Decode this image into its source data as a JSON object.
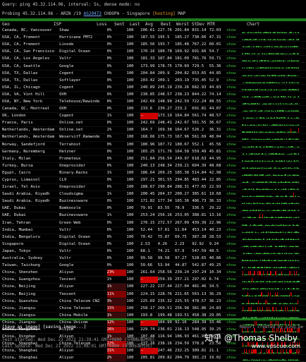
{
  "status_line": "Query: ping 45.32.114.96, interval: 5s, dense mode: no",
  "probe_line": {
    "prefix": "Probing 45.32.114.96 - ARIN /19",
    "asn": "AS20473",
    "org": "CHOOPA - Singapore",
    "host_tag": "[hosting]",
    "map": "MAP"
  },
  "columns": [
    "Geo",
    "ISP",
    "Loss",
    "Sent",
    "Last",
    "Avg",
    "Best",
    "Worst",
    "StDev",
    "MTR",
    "Chart"
  ],
  "rows": [
    {
      "geo": "Canada, BC, Vancouver",
      "isp": "Shaw",
      "loss": "0%",
      "sent": "100",
      "last": "206.61",
      "avg": "227.76",
      "best": "201.84",
      "worst": "831.14",
      "stdev": "72.03",
      "mtr": "show",
      "lvl": "ok"
    },
    {
      "geo": "USA, CA, Fremont",
      "isp": "Hurricane FMT2",
      "loss": "0%",
      "sent": "100",
      "last": "187.55",
      "avg": "195.5",
      "best": "185.27",
      "worst": "738.66",
      "stdev": "47.31",
      "mtr": "show",
      "lvl": "ok"
    },
    {
      "geo": "USA, CA, Fremont",
      "isp": "Linode",
      "loss": "0%",
      "sent": "100",
      "last": "185.56",
      "avg": "193.7",
      "best": "185.48",
      "worst": "767.22",
      "stdev": "60.01",
      "mtr": "show",
      "lvl": "ok"
    },
    {
      "geo": "USA, CA, San Francisco",
      "isp": "Digital Ocean",
      "loss": "0%",
      "sent": "100",
      "last": "170.16",
      "avg": "180.78",
      "best": "169.92",
      "worst": "691.66",
      "stdev": "54.7",
      "mtr": "show",
      "lvl": "ok"
    },
    {
      "geo": "USA, CA, Los Angeles",
      "isp": "Vultr",
      "loss": "0%",
      "sent": "100",
      "last": "181.33",
      "avg": "187.84",
      "best": "181.09",
      "worst": "781.76",
      "stdev": "59.71",
      "mtr": "show",
      "lvl": "ok"
    },
    {
      "geo": "USA, CA, Seattle",
      "isp": "Google",
      "loss": "0%",
      "sent": "100",
      "last": "173.99",
      "avg": "178.75",
      "best": "170.69",
      "worst": "729.5",
      "stdev": "55.36",
      "mtr": "show",
      "lvl": "ok"
    },
    {
      "geo": "USA, TX, Dallas",
      "isp": "Cogent",
      "loss": "0%",
      "sent": "100",
      "last": "204.84",
      "avg": "209.9",
      "best": "204.82",
      "worst": "653.65",
      "stdev": "44.85",
      "mtr": "show",
      "lvl": "ok"
    },
    {
      "geo": "USA, TX, Dallas",
      "isp": "Softlayer",
      "loss": "0%",
      "sent": "100",
      "last": "203.42",
      "avg": "209.1",
      "best": "203.19",
      "worst": "735.45",
      "stdev": "52.9",
      "mtr": "show",
      "lvl": "ok"
    },
    {
      "geo": "USA, IL, Chicago",
      "isp": "Cogent",
      "loss": "0%",
      "sent": "100",
      "last": "240.89",
      "avg": "245.19",
      "best": "239.26",
      "worst": "682.93",
      "stdev": "44.83",
      "mtr": "show",
      "lvl": "ok"
    },
    {
      "geo": "USA, VA, Vint Hill",
      "isp": "OVH",
      "loss": "0%",
      "sent": "100",
      "last": "238.85",
      "avg": "248.57",
      "best": "238.23",
      "worst": "844.22",
      "stdev": "74.14",
      "mtr": "show",
      "lvl": "ok"
    },
    {
      "geo": "USA, NY, New York",
      "isp": "Telehouse/Rawinde",
      "loss": "0%",
      "sent": "100",
      "last": "242.69",
      "avg": "248.99",
      "best": "242.59",
      "worst": "722.24",
      "stdev": "48.55",
      "mtr": "show",
      "lvl": "ok"
    },
    {
      "geo": "Canada, QC, Montreal",
      "isp": "OVH",
      "loss": "0%",
      "sent": "100",
      "last": "233.6",
      "avg": "239.27",
      "best": "233.2",
      "worst": "691.81",
      "stdev": "44.07",
      "mtr": "show",
      "lvl": "ok"
    },
    {
      "geo": "UK, London",
      "isp": "Cogent",
      "loss": "1%",
      "sent": "100",
      "last": "—",
      "avg": "173.19",
      "best": "164.84",
      "worst": "561.74",
      "stdev": "48.57",
      "mtr": "show",
      "lvl": "lastbad"
    },
    {
      "geo": "France, Paris",
      "isp": "Online.net",
      "loss": "0%",
      "sent": "100",
      "last": "242.69",
      "avg": "248.41",
      "best": "242.67",
      "worst": "561.55",
      "stdev": "36.67",
      "mtr": "show",
      "lvl": "ok"
    },
    {
      "geo": "Netherlands, Amsterdam",
      "isp": "Online.net",
      "loss": "2%",
      "sent": "100",
      "last": "164.7",
      "avg": "169.38",
      "best": "164.67",
      "worst": "526.2",
      "stdev": "36.31",
      "mtr": "show",
      "lvl": "ok"
    },
    {
      "geo": "Netherlands, Amsterdam",
      "isp": "WeservitT.Ramwode",
      "loss": "0%",
      "sent": "100",
      "last": "168.66",
      "avg": "175.73",
      "best": "167.96",
      "worst": "561.69",
      "stdev": "48.04",
      "mtr": "show",
      "lvl": "ok"
    },
    {
      "geo": "Norway, Sandefjord",
      "isp": "Terrahost",
      "loss": "0%",
      "sent": "100",
      "last": "180.96",
      "avg": "187.72",
      "best": "180.67",
      "worst": "552.1",
      "stdev": "45.56",
      "mtr": "show",
      "lvl": "ok"
    },
    {
      "geo": "Germany, Nuremberg",
      "isp": "Hetzner",
      "loss": "0%",
      "sent": "100",
      "last": "165.25",
      "avg": "171.76",
      "best": "164.58",
      "worst": "559.49",
      "stdev": "45.81",
      "mtr": "show",
      "lvl": "ok"
    },
    {
      "geo": "Italy, Milan",
      "isp": "Prometeus",
      "loss": "0%",
      "sent": "100",
      "last": "251.84",
      "avg": "256.54",
      "best": "249.97",
      "worst": "618.63",
      "stdev": "44.95",
      "mtr": "show",
      "lvl": "ok"
    },
    {
      "geo": "Turkey, Bursa",
      "isp": "Oneprovider",
      "loss": "0%",
      "sent": "100",
      "last": "240.13",
      "avg": "248.34",
      "best": "239.21",
      "worst": "604.39",
      "stdev": "48.68",
      "mtr": "show",
      "lvl": "ok"
    },
    {
      "geo": "Egypt, Cairo",
      "isp": "Binary.Racks",
      "loss": "1%",
      "sent": "100",
      "last": "186.64",
      "avg": "209.25",
      "best": "185.38",
      "worst": "514.84",
      "stdev": "42.98",
      "mtr": "show",
      "lvl": "ok"
    },
    {
      "geo": "Cyprus, Limassol",
      "isp": "CL9",
      "loss": "0%",
      "sent": "100",
      "last": "297.21",
      "avg": "301.55",
      "best": "294.85",
      "worst": "483.44",
      "stdev": "22.85",
      "mtr": "show",
      "lvl": "ok"
    },
    {
      "geo": "Israel, Tel Aviv",
      "isp": "Oneprovider",
      "loss": "0%",
      "sent": "100",
      "last": "288.67",
      "avg": "290.84",
      "best": "288.31",
      "worst": "477.65",
      "stdev": "22.93",
      "mtr": "show",
      "lvl": "ok"
    },
    {
      "geo": "Saudi Arabia, Riyadh",
      "isp": "Cloudsigma",
      "loss": "1%",
      "sent": "100",
      "last": "200.45",
      "avg": "204.37",
      "best": "200.27",
      "worst": "385.61",
      "stdev": "19.68",
      "mtr": "show",
      "lvl": "ok"
    },
    {
      "geo": "Saudi Arabia, Riyadh",
      "isp": "Buzinessware",
      "loss": "0%",
      "sent": "100",
      "last": "171.82",
      "avg": "177.34",
      "best": "165.36",
      "worst": "486.73",
      "stdev": "36.33",
      "mtr": "show",
      "lvl": "ok"
    },
    {
      "geo": "UAE, Dubai",
      "isp": "Bamboozle",
      "loss": "0%",
      "sent": "100",
      "last": "79.91",
      "avg": "83.55",
      "best": "78.9",
      "worst": "336.5",
      "stdev": "29.22",
      "mtr": "show",
      "lvl": "ok"
    },
    {
      "geo": "UAE, Dubai",
      "isp": "Buzinessware",
      "loss": "1%",
      "sent": "100",
      "last": "253.24",
      "avg": "256.16",
      "best": "253.05",
      "worst": "388.81",
      "stdev": "13.16",
      "mtr": "show",
      "lvl": "ok"
    },
    {
      "geo": "Iran, Tehran",
      "isp": "Green Web",
      "loss": "0%",
      "sent": "100",
      "last": "270.15",
      "avg": "272.57",
      "best": "267.09",
      "worst": "439.39",
      "stdev": "22.96",
      "mtr": "show",
      "lvl": "ok"
    },
    {
      "geo": "India, Mumbai",
      "isp": "Vultr",
      "loss": "0%",
      "sent": "100",
      "last": "52.44",
      "avg": "57.61",
      "best": "51.64",
      "worst": "453.14",
      "stdev": "40.23",
      "mtr": "show",
      "lvl": "ok"
    },
    {
      "geo": "India, Bengaluru",
      "isp": "Digital Ocean",
      "loss": "0%",
      "sent": "100",
      "last": "70.42",
      "avg": "75.87",
      "best": "69.75",
      "worst": "387.38",
      "stdev": "28.53",
      "mtr": "show",
      "lvl": "ok"
    },
    {
      "geo": "Singapore",
      "isp": "Digital Ocean",
      "loss": "0%",
      "sent": "100",
      "last": "2.53",
      "avg": "4.26",
      "best": "2.23",
      "worst": "92.92",
      "stdev": "9.24",
      "mtr": "show",
      "lvl": "ok"
    },
    {
      "geo": "Japan, Tokyo",
      "isp": "Vultr",
      "loss": "0%",
      "sent": "100",
      "last": "68.1",
      "avg": "74.21",
      "best": "67.9",
      "worst": "547.59",
      "stdev": "48.5",
      "mtr": "show",
      "lvl": "ok"
    },
    {
      "geo": "Australia, Sydney",
      "isp": "Vultr",
      "loss": "0%",
      "sent": "100",
      "last": "99.58",
      "avg": "99.58",
      "best": "97.27",
      "worst": "528.65",
      "stdev": "40.86",
      "mtr": "show",
      "lvl": "ok"
    },
    {
      "geo": "Taiwan, Taichung",
      "isp": "Google",
      "loss": "0%",
      "sent": "100",
      "last": "50.66",
      "avg": "53.94",
      "best": "44.87",
      "worst": "542.87",
      "stdev": "49.25",
      "mtr": "show",
      "lvl": "ok"
    },
    {
      "geo": "China, Shenzhen",
      "isp": "Aliyun",
      "loss": "23%",
      "sent": "100",
      "last": "261.64",
      "avg": "258.56",
      "best": "239.24",
      "worst": "297.24",
      "stdev": "10.34",
      "mtr": "show",
      "lvl": "hi"
    },
    {
      "geo": "China, Guangzhou",
      "isp": "Tencent",
      "loss": "1%",
      "sent": "100",
      "last": "—",
      "avg": "259.39",
      "best": "257.21",
      "worst": "297.02",
      "stdev": "6.74",
      "mtr": "show",
      "lvl": "lastbad"
    },
    {
      "geo": "China, Beijing",
      "isp": "Aliyun",
      "loss": "1%",
      "sent": "100",
      "last": "227.22",
      "avg": "237.44",
      "best": "227.04",
      "worst": "481.46",
      "stdev": "34.5",
      "mtr": "show",
      "lvl": "low"
    },
    {
      "geo": "China, Beijing",
      "isp": "Tencent",
      "loss": "11%",
      "sent": "100",
      "last": "224.15",
      "avg": "228.76",
      "best": "221.65",
      "worst": "563.13",
      "stdev": "36.29",
      "mtr": "show",
      "lvl": "med"
    },
    {
      "geo": "China, Quanzhou",
      "isp": "China Telecom CN2",
      "loss": "3%",
      "sent": "100",
      "last": "225.69",
      "avg": "235.32",
      "best": "225.55",
      "worst": "478.57",
      "stdev": "36.23",
      "mtr": "show",
      "lvl": "low"
    },
    {
      "geo": "China, Jiangsu",
      "isp": "China Telecom",
      "loss": "15%",
      "sent": "100",
      "last": "258.17",
      "avg": "269.51",
      "best": "256.98",
      "worst": "381.86",
      "stdev": "24.83",
      "mtr": "show",
      "lvl": "med"
    },
    {
      "geo": "China, Jiangsu",
      "isp": "China Mobile",
      "loss": "1%",
      "sent": "100",
      "last": "193.8",
      "avg": "199.48",
      "best": "193.51",
      "worst": "458.38",
      "stdev": "29.05",
      "mtr": "show",
      "lvl": "low"
    },
    {
      "geo": "China, Jiangsu",
      "isp": "China Unicom",
      "loss": "12%",
      "sent": "100",
      "last": "—",
      "avg": "104.99",
      "best": "92.16",
      "worst": "284.39",
      "stdev": "33.46",
      "mtr": "show",
      "lvl": "medlast"
    },
    {
      "geo": "China, Hangzhou",
      "isp": "Aliyun",
      "loss": "26%",
      "sent": "100",
      "last": "229.74",
      "avg": "236.01",
      "best": "216.13",
      "worst": "548.95",
      "stdev": "39.25",
      "mtr": "show",
      "lvl": "hi"
    },
    {
      "geo": "China, Qingdao",
      "isp": "Aliyun",
      "loss": "1%",
      "sent": "100",
      "last": "107.48",
      "avg": "116.94",
      "best": "106.93",
      "worst": "461.95",
      "stdev": "39.76",
      "mtr": "show",
      "lvl": "low"
    },
    {
      "geo": "China, Shanghai",
      "isp": "China Telecom",
      "loss": "22%",
      "sent": "100",
      "last": "237.18",
      "avg": "238.16",
      "best": "234.59",
      "worst": "378.8",
      "stdev": "23.56",
      "mtr": "show",
      "lvl": "hi"
    },
    {
      "geo": "China, Shanghai",
      "isp": "Aliyun",
      "loss": "31%",
      "sent": "100",
      "last": "—",
      "avg": "247.46",
      "best": "232.25",
      "worst": "309.81",
      "stdev": "21.1",
      "mtr": "show",
      "lvl": "hilast"
    },
    {
      "geo": "China, Shanghai",
      "isp": "Aliyun",
      "loss": "2%",
      "sent": "100",
      "last": "205.81",
      "avg": "209.82",
      "best": "204.79",
      "worst": "381.23",
      "stdev": "19.02",
      "mtr": "show",
      "lvl": "low"
    }
  ],
  "footer": {
    "save_label": "[Save as image]",
    "saving_label": "[saving image...]",
    "credit": "Report created by ping.pe",
    "test_started": "Test started: Wed Dec 21 2022 21:39:41 GMT+0800 (中国标准时间)",
    "last_update": "Last update: Wed Dec 21 2022 21:48:01 GMT+0800 (中国标准时间)"
  },
  "watermark": {
    "main": "知乎 @Thomas Shelby",
    "sub": "www.vpscue.com"
  },
  "colors": {
    "ok_chart": "#3fbf3f",
    "loss_chart": "#d00000",
    "bar": "#1f7a1f"
  }
}
